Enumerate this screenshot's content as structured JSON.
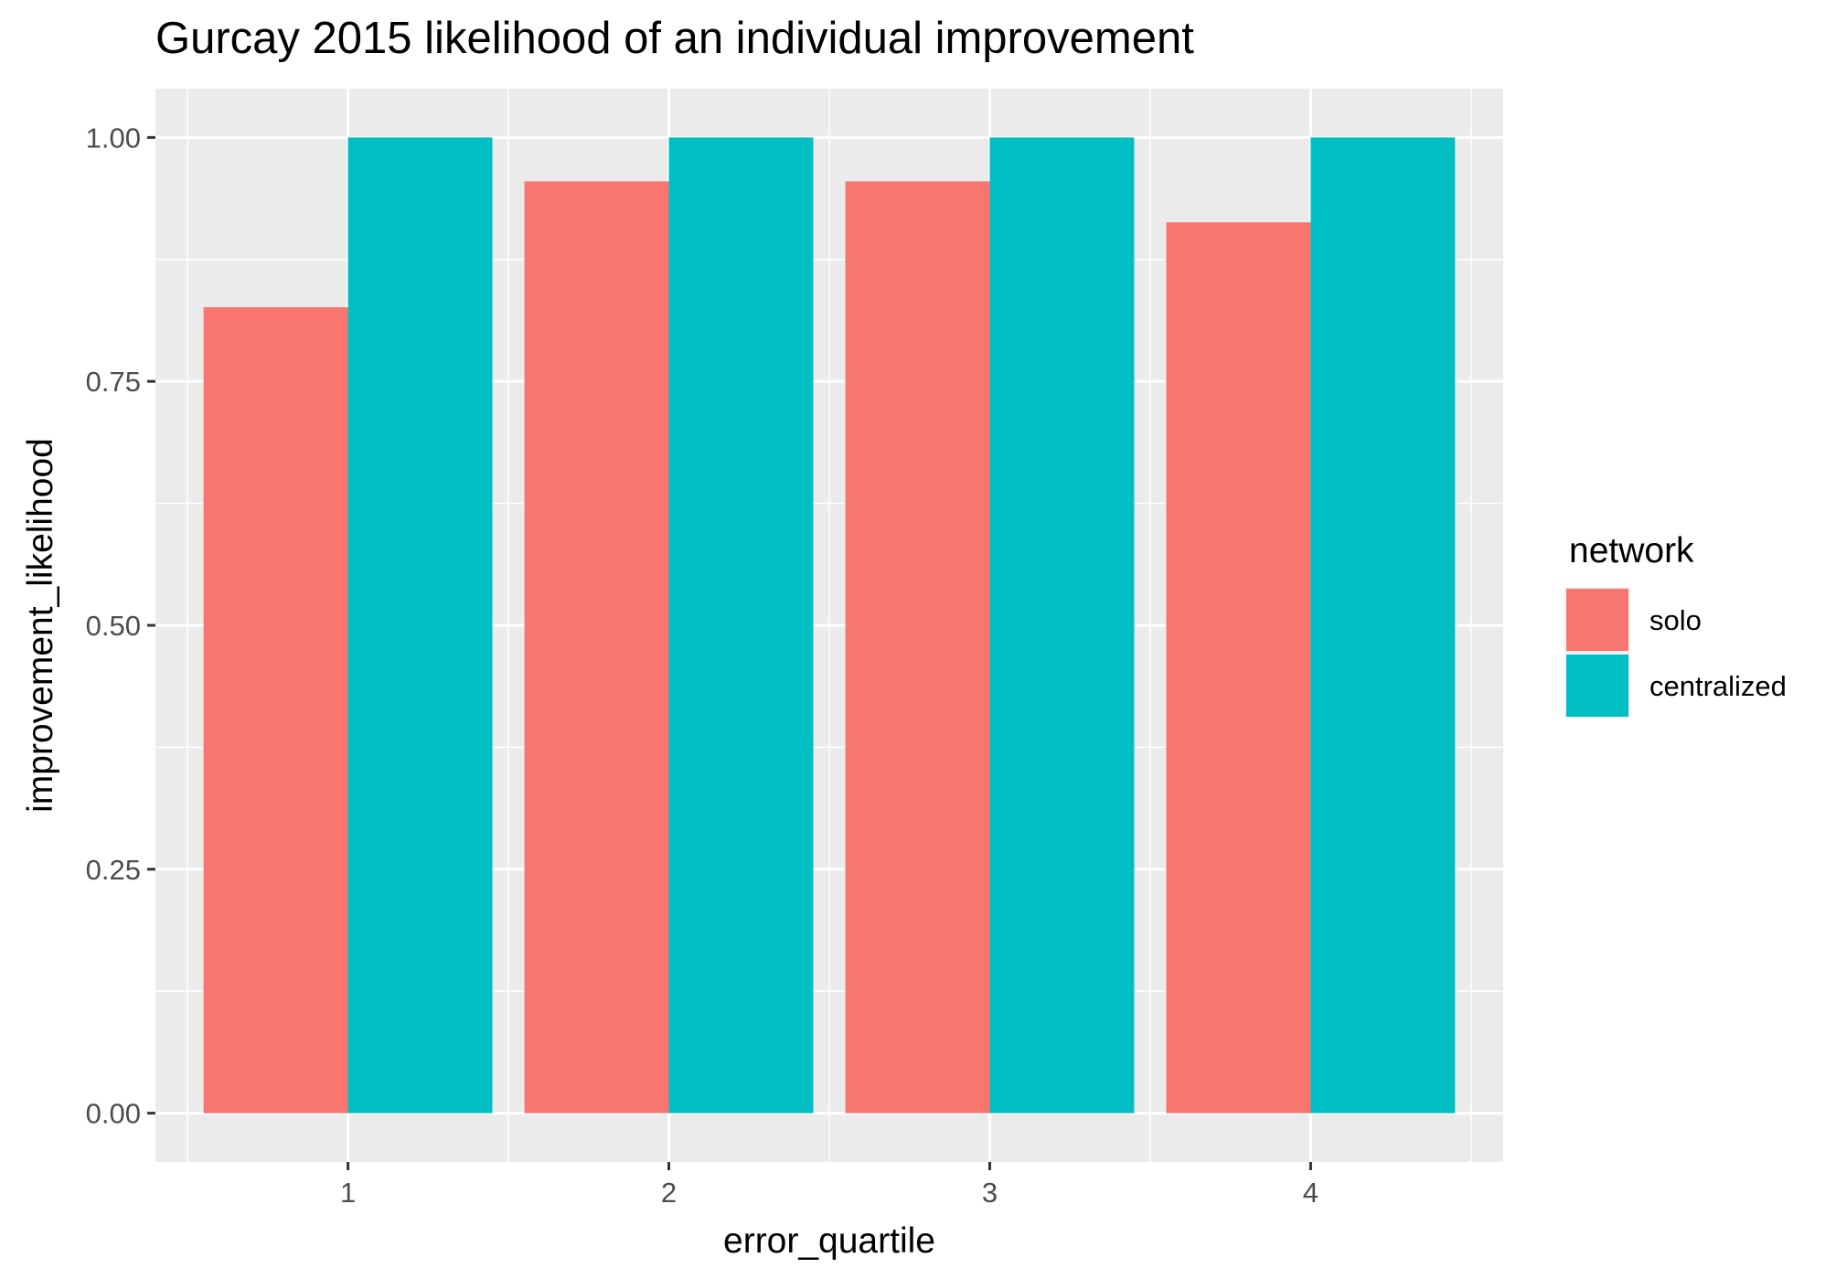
{
  "chart_data": {
    "type": "bar",
    "title": "Gurcay 2015 likelihood of an individual improvement",
    "xlabel": "error_quartile",
    "ylabel": "improvement_likelihood",
    "categories": [
      "1",
      "2",
      "3",
      "4"
    ],
    "series": [
      {
        "name": "solo",
        "values": [
          0.826,
          0.955,
          0.955,
          0.913
        ],
        "color": "#F8766D"
      },
      {
        "name": "centralized",
        "values": [
          1.0,
          1.0,
          1.0,
          1.0
        ],
        "color": "#00BFC4"
      }
    ],
    "ylim": [
      -0.05,
      1.05
    ],
    "y_ticks": [
      0,
      0.25,
      0.5,
      0.75,
      1.0
    ],
    "y_tick_labels": [
      "0.00",
      "0.25",
      "0.50",
      "0.75",
      "1.00"
    ],
    "legend": {
      "title": "network",
      "position": "right"
    },
    "panel_background": "#EBEBEB",
    "grid": true
  }
}
